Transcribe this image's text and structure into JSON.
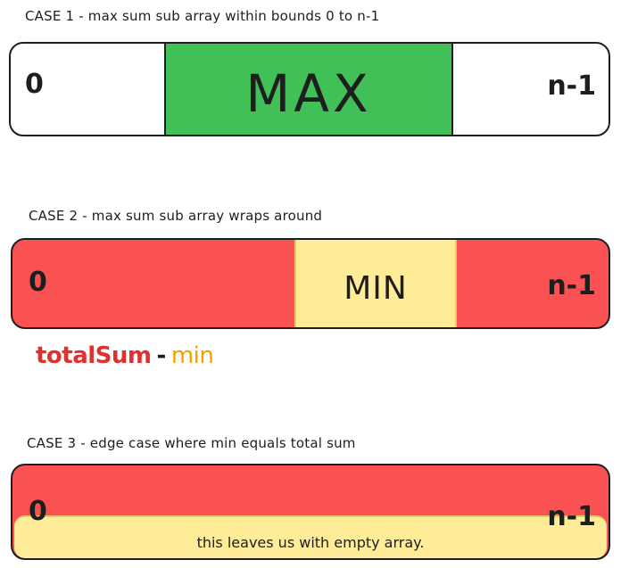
{
  "case1": {
    "title": "CASE 1 - max sum sub array within bounds 0 to n-1",
    "left_label": "0",
    "right_label": "n-1",
    "block_label": "MAX"
  },
  "case2": {
    "title": "CASE 2 - max sum sub array wraps around",
    "left_label": "0",
    "right_label": "n-1",
    "block_label": "MIN",
    "formula": {
      "total": "totalSum",
      "minus": "-",
      "min": "min"
    }
  },
  "case3": {
    "title": "CASE 3 - edge case where min equals total sum",
    "left_label": "0",
    "right_label": "n-1",
    "note": "this leaves us with empty array."
  },
  "colors": {
    "max_block": "#40c057",
    "bar_red": "#fa5252",
    "min_block": "#ffec99",
    "formula_total": "#e03131",
    "formula_min": "#f59f00",
    "stroke": "#1e1e1e"
  }
}
